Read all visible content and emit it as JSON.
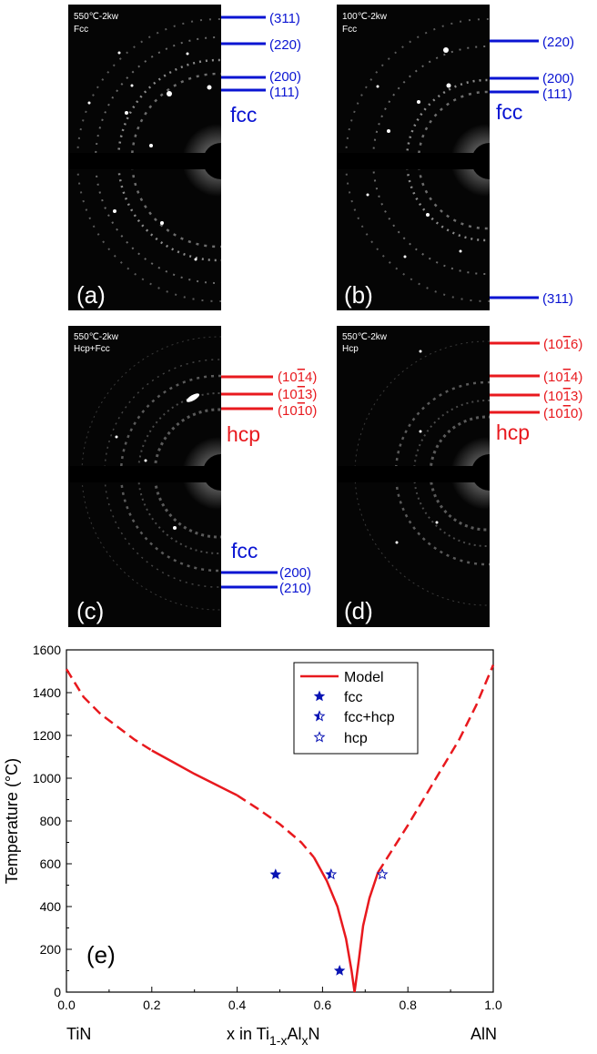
{
  "panels": {
    "a": {
      "label": "(a)",
      "cond_temp": "550℃-2kw",
      "cond_phase": "Fcc",
      "phase_label": "fcc",
      "reflections": [
        "(311)",
        "(220)",
        "(200)",
        "(111)"
      ]
    },
    "b": {
      "label": "(b)",
      "cond_temp": "100℃-2kw",
      "cond_phase": "Fcc",
      "phase_label": "fcc",
      "reflections": [
        "(220)",
        "(200)",
        "(111)",
        "(311)"
      ]
    },
    "c": {
      "label": "(c)",
      "cond_temp": "550℃-2kw",
      "cond_phase": "Hcp+Fcc",
      "phase_label": "hcp",
      "phase_label2": "fcc",
      "reflections_hcp": [
        "(10",
        "4)",
        "(10",
        "3)",
        "(10",
        "0)"
      ],
      "reflections_fcc": [
        "(200)",
        "(210)"
      ]
    },
    "d": {
      "label": "(d)",
      "cond_temp": "550℃-2kw",
      "cond_phase": "Hcp",
      "phase_label": "hcp",
      "reflections_hcp": [
        "(10",
        "6)",
        "(10",
        "4)",
        "(10",
        "3)",
        "(10",
        "0)"
      ]
    }
  },
  "hkil": {
    "c": [
      {
        "a": "(10",
        "b": "1",
        "c": "4)"
      },
      {
        "a": "(10",
        "b": "1",
        "c": "3)"
      },
      {
        "a": "(10",
        "b": "1",
        "c": "0)"
      }
    ],
    "d": [
      {
        "a": "(10",
        "b": "1",
        "c": "6)"
      },
      {
        "a": "(10",
        "b": "1",
        "c": "4)"
      },
      {
        "a": "(10",
        "b": "1",
        "c": "3)"
      },
      {
        "a": "(10",
        "b": "1",
        "c": "0)"
      }
    ]
  },
  "colors": {
    "fcc": "#0a14d2",
    "hcp": "#e8191e",
    "model": "#e8191e",
    "marker": "#0a14b4"
  },
  "chart_data": {
    "type": "line",
    "panel_label": "(e)",
    "ylabel": "Temperature (°C)",
    "xlabel_prefix": "x in Ti",
    "xlabel_sub1": "1-x",
    "xlabel_mid": "Al",
    "xlabel_sub2": "x",
    "xlabel_suffix": "N",
    "x_end_left": "TiN",
    "x_end_right": "AlN",
    "xlim": [
      0,
      1.0
    ],
    "ylim": [
      0,
      1600
    ],
    "xticks": [
      "0.0",
      "0.2",
      "0.4",
      "0.6",
      "0.8",
      "1.0"
    ],
    "yticks": [
      "0",
      "200",
      "400",
      "600",
      "800",
      "1000",
      "1200",
      "1400",
      "1600"
    ],
    "legend": {
      "placement": "top-right",
      "entries": [
        "Model",
        "fcc",
        "fcc+hcp",
        "hcp"
      ]
    },
    "series": [
      {
        "name": "Model",
        "style": "line",
        "segments": [
          {
            "dash": true,
            "x": [
              0.0,
              0.04,
              0.08,
              0.12,
              0.16,
              0.2
            ],
            "y": [
              1510,
              1380,
              1300,
              1240,
              1180,
              1130
            ]
          },
          {
            "dash": false,
            "x": [
              0.2,
              0.25,
              0.3,
              0.35,
              0.4
            ],
            "y": [
              1130,
              1075,
              1020,
              970,
              920
            ]
          },
          {
            "dash": true,
            "x": [
              0.4,
              0.45,
              0.5,
              0.55,
              0.58
            ],
            "y": [
              920,
              855,
              785,
              700,
              630
            ]
          },
          {
            "dash": false,
            "x": [
              0.58,
              0.61,
              0.635,
              0.655,
              0.668,
              0.675
            ],
            "y": [
              630,
              520,
              400,
              250,
              100,
              0
            ]
          },
          {
            "dash": false,
            "x": [
              0.675,
              0.685,
              0.695,
              0.71,
              0.73
            ],
            "y": [
              0,
              150,
              310,
              440,
              560
            ]
          },
          {
            "dash": true,
            "x": [
              0.73,
              0.8,
              0.86,
              0.92,
              0.96,
              1.0
            ],
            "y": [
              560,
              780,
              980,
              1180,
              1340,
              1530
            ]
          }
        ]
      },
      {
        "name": "fcc",
        "style": "star-filled",
        "x": [
          0.49,
          0.64
        ],
        "y": [
          550,
          100
        ]
      },
      {
        "name": "fcc+hcp",
        "style": "star-half",
        "x": [
          0.62
        ],
        "y": [
          550
        ]
      },
      {
        "name": "hcp",
        "style": "star-open",
        "x": [
          0.74
        ],
        "y": [
          550
        ]
      }
    ]
  }
}
